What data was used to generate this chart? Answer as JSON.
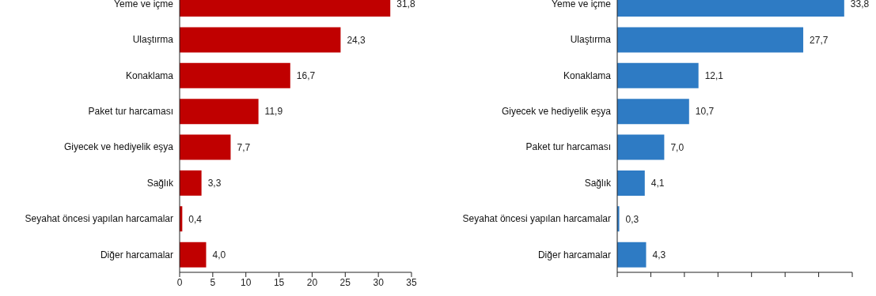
{
  "chart_data": [
    {
      "type": "bar",
      "orientation": "horizontal",
      "categories": [
        "Yeme ve içme",
        "Ulaştırma",
        "Konaklama",
        "Paket tur harcaması",
        "Giyecek ve hediyelik eşya",
        "Sağlık",
        "Seyahat öncesi yapılan harcamalar",
        "Diğer harcamalar"
      ],
      "values": [
        31.8,
        24.3,
        16.7,
        11.9,
        7.7,
        3.3,
        0.4,
        4.0
      ],
      "value_labels": [
        "31,8",
        "24,3",
        "16,7",
        "11,9",
        "7,7",
        "3,3",
        "0,4",
        "4,0"
      ],
      "color": "#c00000",
      "xlim": [
        0,
        35
      ],
      "xticks": [
        0,
        5,
        10,
        15,
        20,
        25,
        30,
        35
      ],
      "grid": false,
      "legend": false
    },
    {
      "type": "bar",
      "orientation": "horizontal",
      "categories": [
        "Yeme ve içme",
        "Ulaştırma",
        "Konaklama",
        "Giyecek ve hediyelik eşya",
        "Paket tur harcaması",
        "Sağlık",
        "Seyahat öncesi yapılan harcamalar",
        "Diğer harcamalar"
      ],
      "values": [
        33.8,
        27.7,
        12.1,
        10.7,
        7.0,
        4.1,
        0.3,
        4.3
      ],
      "value_labels": [
        "33,8",
        "27,7",
        "12,1",
        "10,7",
        "7,0",
        "4,1",
        "0,3",
        "4,3"
      ],
      "color": "#2e7bc4",
      "xticks": [
        {
          "value": 0,
          "label": null
        },
        {
          "value": 5,
          "label": null
        },
        {
          "value": 10,
          "label": null
        },
        {
          "value": 15,
          "label": null
        },
        {
          "value": 20,
          "label": null
        },
        {
          "value": 25,
          "label": null
        },
        {
          "value": 30,
          "label": null
        },
        {
          "value": 35,
          "label": null
        }
      ],
      "tick_labels": "y",
      "grid": false,
      "legend": false
    }
  ]
}
